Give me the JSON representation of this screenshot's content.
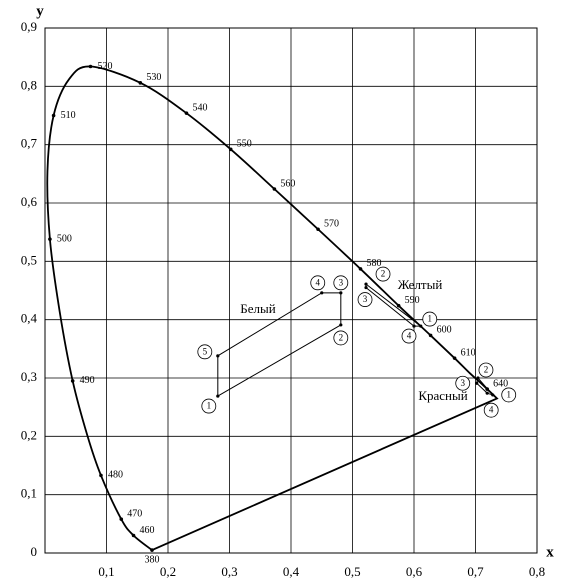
{
  "chart_data": {
    "type": "line",
    "x_label": "x",
    "y_label": "y",
    "xlim": [
      0,
      0.8
    ],
    "ylim": [
      0,
      0.9
    ],
    "xticks": [
      {
        "value": 0.1,
        "label": "0,1"
      },
      {
        "value": 0.2,
        "label": "0,2"
      },
      {
        "value": 0.3,
        "label": "0,3"
      },
      {
        "value": 0.4,
        "label": "0,4"
      },
      {
        "value": 0.5,
        "label": "0,5"
      },
      {
        "value": 0.6,
        "label": "0,6"
      },
      {
        "value": 0.7,
        "label": "0,7"
      },
      {
        "value": 0.8,
        "label": "0,8"
      }
    ],
    "yticks": [
      0,
      {
        "value": 0.1,
        "label": "0,1"
      },
      {
        "value": 0.2,
        "label": "0,2"
      },
      {
        "value": 0.3,
        "label": "0,3"
      },
      {
        "value": 0.4,
        "label": "0,4"
      },
      {
        "value": 0.5,
        "label": "0,5"
      },
      {
        "value": 0.6,
        "label": "0,6"
      },
      {
        "value": 0.7,
        "label": "0,7"
      },
      {
        "value": 0.8,
        "label": "0,8"
      },
      {
        "value": 0.9,
        "label": "0,9"
      }
    ],
    "grid": true,
    "series": [
      {
        "color": "#000000",
        "smooth": true,
        "closed": true,
        "x": [
          0.174,
          0.144,
          0.124,
          0.091,
          0.069,
          0.045,
          0.024,
          0.008,
          0.004,
          0.014,
          0.039,
          0.074,
          0.155,
          0.23,
          0.302,
          0.373,
          0.444,
          0.513,
          0.575,
          0.627,
          0.666,
          0.691,
          0.708,
          0.719,
          0.735
        ],
        "values": [
          0.005,
          0.03,
          0.058,
          0.133,
          0.201,
          0.295,
          0.413,
          0.538,
          0.655,
          0.75,
          0.812,
          0.834,
          0.806,
          0.754,
          0.692,
          0.624,
          0.555,
          0.487,
          0.424,
          0.373,
          0.334,
          0.308,
          0.292,
          0.281,
          0.265
        ],
        "point_labels": [
          380,
          460,
          470,
          480,
          null,
          490,
          null,
          500,
          null,
          510,
          null,
          520,
          530,
          540,
          550,
          560,
          570,
          580,
          590,
          600,
          610,
          null,
          null,
          640,
          null
        ]
      },
      {
        "name": "Белый",
        "color": "#000000",
        "closed": true,
        "x": [
          0.281,
          0.481,
          0.481,
          0.45,
          0.281
        ],
        "values": [
          0.269,
          0.391,
          0.446,
          0.446,
          0.338
        ],
        "point_labels": [
          "1",
          "2",
          "3",
          "4",
          "5"
        ]
      },
      {
        "name": "Желтый",
        "color": "#000000",
        "closed": true,
        "x": [
          0.611,
          0.522,
          0.522,
          0.6
        ],
        "values": [
          0.389,
          0.461,
          0.455,
          0.389
        ],
        "point_labels": [
          "1",
          "2",
          "3",
          "4"
        ]
      },
      {
        "name": "Красный",
        "color": "#000000",
        "closed": true,
        "x": [
          0.728,
          0.704,
          0.702,
          0.719
        ],
        "values": [
          0.271,
          0.3,
          0.291,
          0.274
        ],
        "point_labels": [
          "1",
          "2",
          "3",
          "4"
        ]
      }
    ]
  }
}
